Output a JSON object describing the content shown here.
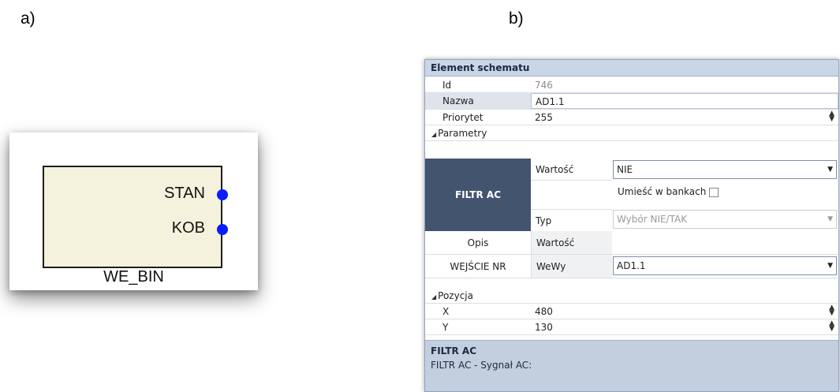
{
  "figure_labels": {
    "a": "a)",
    "b": "b)"
  },
  "block": {
    "ports": [
      "STAN",
      "KOB"
    ],
    "name": "WE_BIN",
    "port_color": "#0a1cff",
    "body_color": "#f4f2dc"
  },
  "properties": {
    "header": "Element schematu",
    "id": {
      "label": "Id",
      "value": "746"
    },
    "nazwa": {
      "label": "Nazwa",
      "value": "AD1.1"
    },
    "priorytet": {
      "label": "Priorytet",
      "value": "255"
    },
    "parametry_section": "Parametry",
    "filtr_block": "FILTR AC",
    "wartosc_label": "Wartość",
    "wartosc_value": "NIE",
    "umiesc_label": "Umieść w bankach",
    "typ_label": "Typ",
    "typ_value": "Wybór NIE/TAK",
    "opis_label": "Opis",
    "opis_wartosc_label": "Wartość",
    "wejscie_label": "WEJŚCIE NR",
    "wewy_label": "WeWy",
    "wewy_value": "AD1.1",
    "pozycja_section": "Pozycja",
    "x": {
      "label": "X",
      "value": "480"
    },
    "y": {
      "label": "Y",
      "value": "130"
    },
    "description_title": "FILTR AC",
    "description_text": "FILTR AC - Sygnał AC:",
    "colors": {
      "header": "#c9d6e8",
      "filtr_block": "#43546f",
      "description": "#c3cfdf"
    }
  }
}
